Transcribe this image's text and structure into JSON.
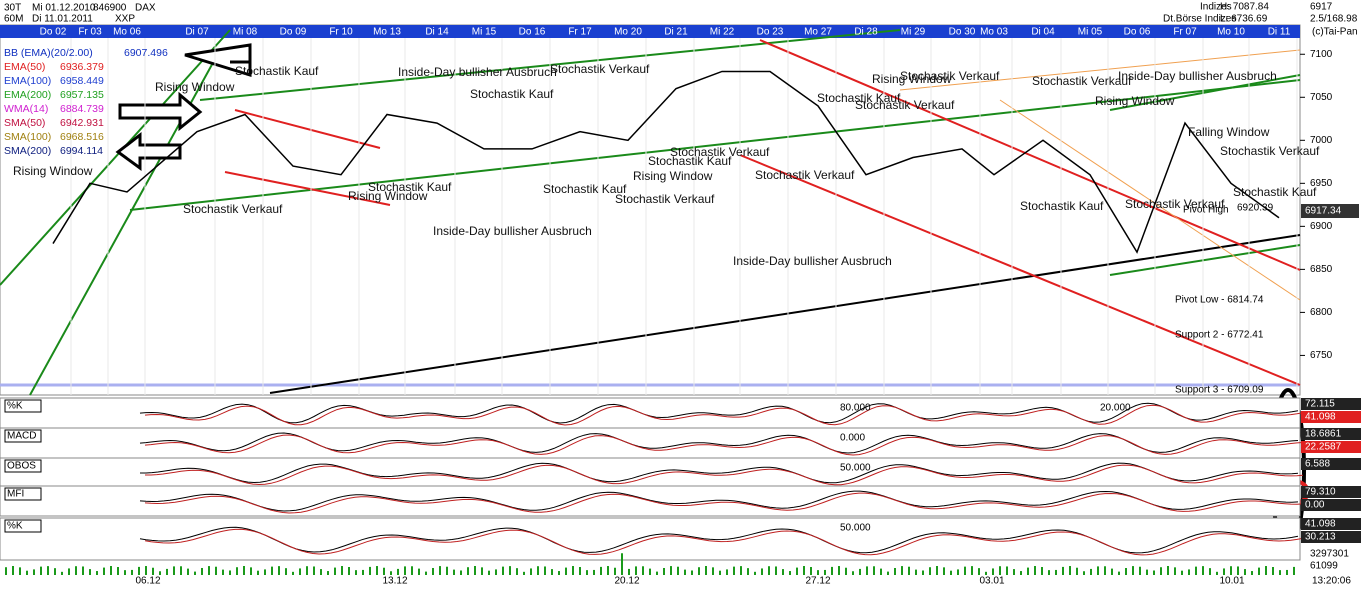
{
  "header": {
    "left": [
      "30T",
      "Mi 01.12.2010",
      "846900",
      "DAX",
      "60M",
      "Di 11.01.2011",
      "XXP"
    ],
    "right": [
      "Indizes",
      "H: 7087.84",
      "6917",
      "2.5/168.98",
      "Dt.Börse Indizes",
      "L: 6736.69",
      "(c)Tai-Pan"
    ]
  },
  "indicators": [
    {
      "name": "BB (EMA)(20/2.00)",
      "value": "6907.496",
      "color": "#1030c0"
    },
    {
      "name": "EMA(50)",
      "value": "6936.379",
      "color": "#e02020"
    },
    {
      "name": "EMA(100)",
      "value": "6958.449",
      "color": "#2040d0"
    },
    {
      "name": "EMA(200)",
      "value": "6957.135",
      "color": "#20a020"
    },
    {
      "name": "WMA(14)",
      "value": "6884.739",
      "color": "#d020d0"
    },
    {
      "name": "SMA(50)",
      "value": "6942.931",
      "color": "#c01040"
    },
    {
      "name": "SMA(100)",
      "value": "6968.516",
      "color": "#a08010"
    },
    {
      "name": "SMA(200)",
      "value": "6994.114",
      "color": "#102080"
    }
  ],
  "date_labels": [
    "Do 02",
    "Fr 03",
    "Mo 06",
    "Di 07",
    "Mi 08",
    "Do 09",
    "Fr 10",
    "Mo 13",
    "Di 14",
    "Mi 15",
    "Do 16",
    "Fr 17",
    "Mo 20",
    "Di 21",
    "Mi 22",
    "Do 23",
    "Mo 27",
    "Di 28",
    "Mi 29",
    "Do 30",
    "Mo 03",
    "Di 04",
    "Mi 05",
    "Do 06",
    "Fr 07",
    "Mo 10",
    "Di 11"
  ],
  "price_chart": {
    "ylim": [
      6704,
      7134
    ],
    "yticks": [
      7100,
      7050,
      7000,
      6950,
      6900,
      6850,
      6800,
      6750
    ],
    "closes": [
      6880,
      6950,
      6940,
      7010,
      7030,
      6970,
      6960,
      7030,
      7020,
      6990,
      6990,
      7010,
      7000,
      7060,
      7080,
      7080,
      7040,
      6960,
      6980,
      6990,
      6960,
      7000,
      6960,
      6870,
      7020,
      6950,
      6910
    ],
    "last_price": "6917.34"
  },
  "x_labels": [
    "06.12",
    "13.12",
    "20.12",
    "27.12",
    "03.01",
    "10.01"
  ],
  "annotations": [
    "Stochastik Kauf",
    "Rising Window",
    "Inside-Day bullisher Ausbruch",
    "Stochastik Verkauf",
    "Stochastik Kauf",
    "Rising Window",
    "Stochastik Verkauf",
    "Rising Window",
    "Stochastik Kauf",
    "Stochastik Kauf",
    "Stochastik Verkauf",
    "Inside-Day bullisher Ausbruch",
    "Stochastik Kauf",
    "Rising Window",
    "Stochastik Verkauf",
    "Stochastik Kauf",
    "Stochastik Verkauf",
    "Rising Window",
    "Stochastik Verkauf",
    "Stochastik Verkauf",
    "Stochastik Verkauf",
    "Inside-Day bullisher Ausbruch",
    "Stochastik Kauf",
    "Rising Window",
    "Inside-Day bullisher Ausbruch",
    "Stochastik Verkauf",
    "Stochastik Kauf",
    "Falling Window",
    "Stochastik Verkauf",
    "Pivot High",
    "6920.39",
    "Pivot Low - 6814.74",
    "Support 2 - 6772.41",
    "Support 3 - 6709.09"
  ],
  "panels": [
    {
      "label": "%K",
      "values": [
        "72.115",
        "41.098"
      ],
      "levels": [
        "80.000",
        "20.000"
      ]
    },
    {
      "label": "MACD",
      "values": [
        "18.6861",
        "22.2587"
      ],
      "levels": [
        "0.000"
      ]
    },
    {
      "label": "OBOS",
      "values": [
        "6.588"
      ],
      "levels": [
        "50.000"
      ]
    },
    {
      "label": "MFI",
      "values": [
        "79.310",
        "0.00"
      ],
      "levels": []
    },
    {
      "label": "%K",
      "values": [
        "41.098",
        "30.213"
      ],
      "levels": [
        "50.000"
      ]
    }
  ],
  "volume": [
    "3297301",
    "61099"
  ],
  "time": "13:20:06"
}
